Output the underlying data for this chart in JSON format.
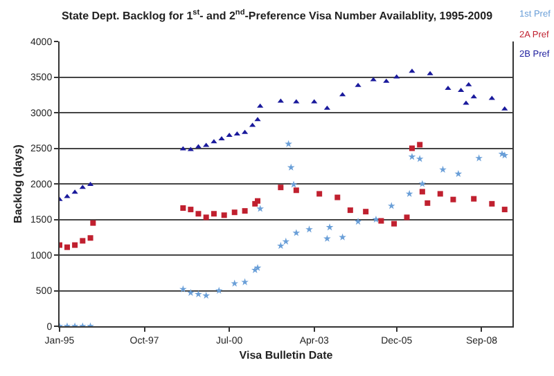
{
  "chart_data": {
    "type": "scatter",
    "title": "State Dept. Backlog for 1$^{st}$- and 2$^{nd}$-Preference Visa Number Availablity, 1995-2009",
    "xlabel": "Visa Bulletin Date",
    "ylabel": "Backlog (days)",
    "xlim": [
      "1995-01",
      "2009-09"
    ],
    "xticks": [
      {
        "value": "1995-01",
        "label": "Jan-95"
      },
      {
        "value": "1997-10",
        "label": "Oct-97"
      },
      {
        "value": "2000-07",
        "label": "Jul-00"
      },
      {
        "value": "2003-04",
        "label": "Apr-03"
      },
      {
        "value": "2005-12",
        "label": "Dec-05"
      },
      {
        "value": "2008-09",
        "label": "Sep-08"
      }
    ],
    "ylim": [
      0,
      4000
    ],
    "yticks": [
      0,
      500,
      1000,
      1500,
      2000,
      2500,
      3000,
      3500,
      4000
    ],
    "grid": "y",
    "legend": "top right",
    "series": [
      {
        "name": "1st Pref",
        "color": "#6a9fd8",
        "marker": "star",
        "x": [
          "1995-01",
          "1995-04",
          "1995-07",
          "1995-10",
          "1996-01",
          "1999-01",
          "1999-04",
          "1999-07",
          "1999-10",
          "2000-03",
          "2000-09",
          "2001-01",
          "2001-05",
          "2001-06",
          "2001-07",
          "2002-03",
          "2002-05",
          "2002-06",
          "2002-07",
          "2002-08",
          "2002-09",
          "2003-02",
          "2003-09",
          "2003-10",
          "2004-03",
          "2004-09",
          "2005-04",
          "2005-10",
          "2006-05",
          "2006-06",
          "2006-09",
          "2006-10",
          "2007-06",
          "2007-12",
          "2008-08",
          "2009-05",
          "2009-06"
        ],
        "values": [
          0,
          0,
          0,
          0,
          0,
          520,
          470,
          450,
          430,
          500,
          600,
          620,
          790,
          820,
          1650,
          1130,
          1190,
          2560,
          2230,
          1990,
          1310,
          1360,
          1230,
          1390,
          1250,
          1470,
          1500,
          1690,
          1860,
          2380,
          2350,
          2000,
          2200,
          2140,
          2360,
          2420,
          2400
        ]
      },
      {
        "name": "2A Pref",
        "color": "#c0202f",
        "marker": "square",
        "x": [
          "1995-01",
          "1995-04",
          "1995-07",
          "1995-10",
          "1996-01",
          "1996-02",
          "1999-01",
          "1999-04",
          "1999-07",
          "1999-10",
          "2000-01",
          "2000-05",
          "2000-09",
          "2001-01",
          "2001-05",
          "2001-06",
          "2002-03",
          "2002-09",
          "2003-06",
          "2004-01",
          "2004-06",
          "2004-12",
          "2005-06",
          "2005-11",
          "2006-04",
          "2006-06",
          "2006-09",
          "2006-10",
          "2006-12",
          "2007-05",
          "2007-10",
          "2008-06",
          "2009-01",
          "2009-06"
        ],
        "values": [
          1140,
          1110,
          1140,
          1200,
          1240,
          1450,
          1660,
          1640,
          1580,
          1530,
          1580,
          1560,
          1600,
          1620,
          1720,
          1760,
          1950,
          1910,
          1860,
          1810,
          1630,
          1610,
          1480,
          1440,
          1530,
          2500,
          2550,
          1890,
          1730,
          1860,
          1780,
          1790,
          1720,
          1640
        ]
      },
      {
        "name": "2B Pref",
        "color": "#1a1a9c",
        "marker": "triangle",
        "x": [
          "1995-01",
          "1995-04",
          "1995-07",
          "1995-10",
          "1996-01",
          "1999-01",
          "1999-04",
          "1999-07",
          "1999-10",
          "2000-01",
          "2000-04",
          "2000-07",
          "2000-10",
          "2001-01",
          "2001-04",
          "2001-06",
          "2001-07",
          "2002-03",
          "2002-09",
          "2003-04",
          "2003-09",
          "2004-03",
          "2004-09",
          "2005-03",
          "2005-08",
          "2005-12",
          "2006-06",
          "2007-01",
          "2007-08",
          "2008-01",
          "2008-03",
          "2008-04",
          "2008-06",
          "2009-01",
          "2009-06"
        ],
        "values": [
          1780,
          1820,
          1880,
          1950,
          1990,
          2490,
          2480,
          2520,
          2540,
          2590,
          2630,
          2680,
          2700,
          2720,
          2820,
          2900,
          3090,
          3160,
          3150,
          3150,
          3060,
          3250,
          3380,
          3460,
          3440,
          3500,
          3580,
          3545,
          3340,
          3310,
          3130,
          3390,
          3220,
          3200,
          3050
        ]
      }
    ]
  }
}
